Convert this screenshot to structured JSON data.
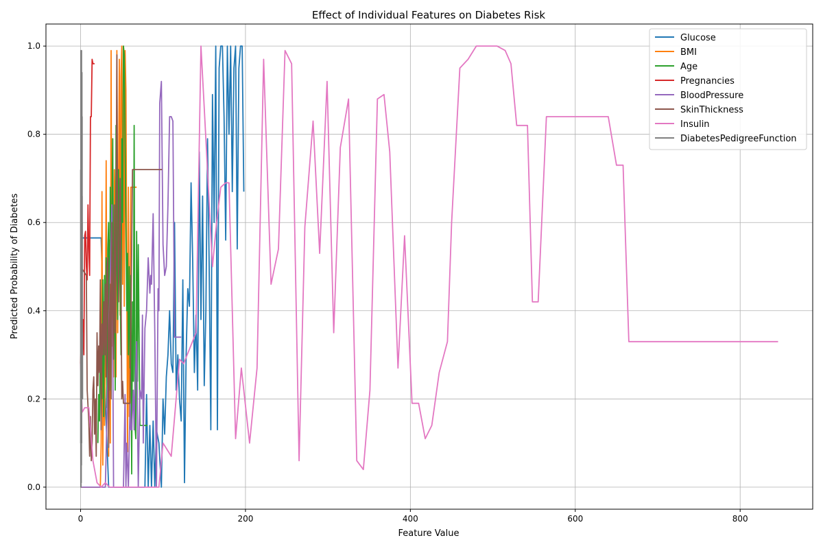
{
  "chart_data": {
    "type": "line",
    "title": "Effect of Individual Features on Diabetes Risk",
    "xlabel": "Feature Value",
    "ylabel": "Predicted Probability of Diabetes",
    "xlim": [
      -42,
      888
    ],
    "ylim": [
      -0.05,
      1.05
    ],
    "xticks": [
      0,
      200,
      400,
      600,
      800
    ],
    "yticks": [
      0.0,
      0.2,
      0.4,
      0.6,
      0.8,
      1.0
    ],
    "xtick_labels": [
      "0",
      "200",
      "400",
      "600",
      "800"
    ],
    "ytick_labels": [
      "0.0",
      "0.2",
      "0.4",
      "0.6",
      "0.8",
      "1.0"
    ],
    "grid": true,
    "legend_position": "top-right",
    "series": [
      {
        "name": "Glucose",
        "color": "#1f77b4",
        "x": [
          0,
          5,
          10,
          20,
          25,
          30,
          32,
          34,
          36,
          38,
          40,
          44,
          48,
          52,
          56,
          60,
          64,
          68,
          72,
          76,
          78,
          80,
          82,
          84,
          86,
          88,
          90,
          92,
          95,
          98,
          100,
          102,
          104,
          106,
          108,
          110,
          112,
          114,
          116,
          118,
          120,
          122,
          124,
          126,
          128,
          130,
          132,
          134,
          136,
          138,
          140,
          142,
          144,
          146,
          148,
          150,
          152,
          154,
          156,
          158,
          160,
          162,
          164,
          166,
          168,
          170,
          172,
          174,
          176,
          178,
          180,
          182,
          184,
          186,
          188,
          190,
          192,
          194,
          196,
          198
        ],
        "y": [
          0.565,
          0.565,
          0.565,
          0.565,
          0.565,
          0.2,
          0.1,
          0.0,
          0.0,
          0.0,
          0.0,
          0.0,
          0.0,
          0.0,
          0.0,
          0.0,
          0.0,
          0.0,
          0.0,
          0.0,
          0.0,
          0.21,
          0.0,
          0.14,
          0.0,
          0.15,
          0.0,
          0.13,
          0.1,
          0.0,
          0.2,
          0.12,
          0.25,
          0.3,
          0.4,
          0.28,
          0.26,
          0.6,
          0.22,
          0.3,
          0.2,
          0.15,
          0.47,
          0.01,
          0.3,
          0.45,
          0.41,
          0.69,
          0.51,
          0.26,
          0.39,
          0.22,
          0.76,
          0.38,
          0.66,
          0.23,
          0.4,
          0.79,
          0.5,
          0.13,
          0.89,
          0.6,
          1.0,
          0.13,
          0.95,
          1.0,
          1.0,
          0.84,
          0.56,
          1.0,
          0.8,
          1.0,
          0.67,
          0.95,
          1.0,
          0.54,
          0.95,
          1.0,
          1.0,
          0.67
        ]
      },
      {
        "name": "BMI",
        "color": "#ff7f0e",
        "x": [
          0,
          10,
          14,
          18,
          20,
          22,
          24,
          25,
          26,
          27,
          28,
          29,
          30,
          31,
          32,
          33,
          34,
          35,
          36,
          37,
          38,
          39,
          40,
          41,
          42,
          43,
          44,
          45,
          46,
          47,
          48,
          49,
          50,
          51,
          52,
          53,
          54,
          55,
          56,
          57,
          58,
          59,
          60,
          61,
          62,
          63,
          64,
          65,
          66,
          67,
          68
        ],
        "y": [
          0.0,
          0.0,
          0.0,
          0.0,
          0.0,
          0.0,
          0.0,
          0.1,
          0.67,
          0.05,
          0.35,
          0.14,
          0.29,
          0.74,
          0.27,
          0.48,
          0.07,
          0.56,
          0.1,
          0.99,
          0.32,
          0.55,
          0.25,
          0.72,
          0.61,
          0.25,
          0.99,
          0.35,
          0.66,
          0.97,
          0.39,
          0.93,
          1.0,
          0.46,
          1.0,
          0.41,
          0.99,
          0.9,
          0.5,
          0.08,
          0.68,
          0.16,
          0.46,
          0.68,
          0.68,
          0.68,
          0.68,
          0.68,
          0.68,
          0.68,
          0.68
        ]
      },
      {
        "name": "Age",
        "color": "#2ca02c",
        "x": [
          21,
          22,
          23,
          24,
          25,
          26,
          27,
          28,
          29,
          30,
          31,
          32,
          33,
          34,
          35,
          36,
          37,
          38,
          39,
          40,
          41,
          42,
          43,
          44,
          45,
          46,
          47,
          48,
          49,
          50,
          51,
          52,
          53,
          54,
          55,
          56,
          57,
          58,
          59,
          60,
          61,
          62,
          63,
          64,
          65,
          66,
          67,
          68,
          69,
          70,
          72,
          74,
          76,
          78,
          81
        ],
        "y": [
          0.1,
          0.21,
          0.15,
          0.35,
          0.3,
          0.2,
          0.47,
          0.16,
          0.48,
          0.3,
          0.52,
          0.18,
          0.54,
          0.6,
          0.22,
          0.68,
          0.5,
          0.64,
          0.79,
          0.32,
          0.54,
          0.22,
          0.82,
          0.5,
          0.38,
          0.72,
          0.6,
          0.45,
          0.3,
          0.79,
          0.6,
          1.0,
          0.98,
          0.78,
          0.6,
          0.4,
          0.53,
          0.3,
          0.5,
          0.27,
          0.48,
          0.03,
          0.42,
          0.24,
          0.82,
          0.14,
          0.11,
          0.58,
          0.24,
          0.55,
          0.14,
          0.14,
          0.14,
          0.14,
          0.14
        ]
      },
      {
        "name": "Pregnancies",
        "color": "#d62728",
        "x": [
          0,
          1,
          2,
          3,
          4,
          5,
          6,
          7,
          8,
          9,
          10,
          11,
          12,
          13,
          14,
          15,
          17
        ],
        "y": [
          0.28,
          0.35,
          0.28,
          0.38,
          0.3,
          0.57,
          0.58,
          0.5,
          0.47,
          0.64,
          0.54,
          0.48,
          0.84,
          0.84,
          0.97,
          0.96,
          0.96
        ]
      },
      {
        "name": "BloodPressure",
        "color": "#9467bd",
        "x": [
          0,
          24,
          30,
          38,
          40,
          44,
          46,
          48,
          50,
          52,
          54,
          55,
          56,
          58,
          60,
          61,
          62,
          64,
          65,
          66,
          68,
          70,
          72,
          74,
          75,
          76,
          78,
          80,
          82,
          84,
          85,
          86,
          88,
          90,
          92,
          94,
          95,
          96,
          98,
          100,
          102,
          104,
          106,
          108,
          110,
          112,
          114,
          116,
          118,
          120,
          122
        ],
        "y": [
          0.0,
          0.0,
          0.0,
          0.64,
          0.0,
          0.0,
          0.0,
          0.0,
          0.0,
          0.0,
          0.21,
          0.0,
          0.1,
          0.0,
          0.19,
          0.13,
          0.13,
          0.22,
          0.13,
          0.22,
          0.33,
          0.0,
          0.22,
          0.2,
          0.39,
          0.1,
          0.36,
          0.4,
          0.52,
          0.44,
          0.48,
          0.46,
          0.62,
          0.35,
          0.0,
          0.45,
          0.4,
          0.87,
          0.92,
          0.55,
          0.48,
          0.5,
          0.64,
          0.84,
          0.84,
          0.83,
          0.34,
          0.34,
          0.34,
          0.34,
          0.34
        ]
      },
      {
        "name": "SkinThickness",
        "color": "#8c564b",
        "x": [
          0,
          7,
          8,
          10,
          11,
          12,
          13,
          14,
          15,
          16,
          17,
          18,
          19,
          20,
          21,
          22,
          23,
          24,
          25,
          26,
          27,
          28,
          29,
          30,
          31,
          32,
          33,
          34,
          35,
          36,
          37,
          38,
          39,
          40,
          41,
          42,
          43,
          44,
          45,
          46,
          47,
          48,
          49,
          50,
          51,
          52,
          54,
          56,
          60,
          63,
          99
        ],
        "y": [
          0.5,
          0.48,
          0.22,
          0.15,
          0.07,
          0.16,
          0.06,
          0.1,
          0.22,
          0.25,
          0.12,
          0.2,
          0.07,
          0.35,
          0.23,
          0.32,
          0.26,
          0.47,
          0.13,
          0.37,
          0.3,
          0.42,
          0.3,
          0.46,
          0.25,
          0.5,
          0.52,
          0.09,
          0.37,
          0.46,
          0.2,
          0.6,
          0.4,
          0.29,
          0.64,
          0.35,
          0.55,
          0.98,
          0.59,
          0.42,
          0.6,
          0.7,
          0.46,
          0.2,
          0.24,
          0.19,
          0.19,
          0.19,
          0.19,
          0.72,
          0.72
        ]
      },
      {
        "name": "Insulin",
        "color": "#e377c2",
        "x": [
          0,
          1,
          2,
          5,
          10,
          15,
          20,
          25,
          30,
          35,
          40,
          45,
          50,
          55,
          60,
          65,
          70,
          75,
          80,
          85,
          90,
          95,
          100,
          110,
          120,
          125,
          140,
          146,
          150,
          160,
          165,
          170,
          176,
          180,
          188,
          195,
          205,
          214,
          222,
          231,
          240,
          248,
          256,
          265,
          272,
          282,
          290,
          299,
          307,
          315,
          325,
          335,
          343,
          351,
          360,
          368,
          375,
          385,
          393,
          402,
          410,
          418,
          426,
          435,
          445,
          450,
          460,
          470,
          480,
          495,
          505,
          515,
          522,
          529,
          535,
          542,
          548,
          555,
          565,
          620,
          640,
          650,
          658,
          665,
          700,
          846
        ],
        "y": [
          0.28,
          0.22,
          0.17,
          0.18,
          0.18,
          0.06,
          0.01,
          0.0,
          0.01,
          0.0,
          0.0,
          0.0,
          0.0,
          0.0,
          0.0,
          0.0,
          0.0,
          0.0,
          0.0,
          0.0,
          0.0,
          0.0,
          0.1,
          0.07,
          0.29,
          0.28,
          0.35,
          1.0,
          0.86,
          0.5,
          0.6,
          0.68,
          0.69,
          0.69,
          0.11,
          0.27,
          0.1,
          0.27,
          0.97,
          0.46,
          0.54,
          0.99,
          0.96,
          0.06,
          0.59,
          0.83,
          0.53,
          0.92,
          0.35,
          0.77,
          0.88,
          0.06,
          0.04,
          0.22,
          0.88,
          0.89,
          0.76,
          0.27,
          0.57,
          0.19,
          0.19,
          0.11,
          0.14,
          0.26,
          0.33,
          0.6,
          0.95,
          0.97,
          1.0,
          1.0,
          1.0,
          0.99,
          0.96,
          0.82,
          0.82,
          0.82,
          0.42,
          0.42,
          0.84,
          0.84,
          0.84,
          0.73,
          0.73,
          0.33,
          0.33,
          0.33
        ]
      },
      {
        "name": "DiabetesPedigreeFunction",
        "color": "#7f7f7f",
        "x": [
          0.08,
          0.12,
          0.16,
          0.2,
          0.25,
          0.3,
          0.35,
          0.4,
          0.45,
          0.5,
          0.55,
          0.6,
          0.65,
          0.7,
          0.75,
          0.8,
          0.85,
          0.9,
          0.95,
          1.0,
          1.05,
          1.1,
          1.15,
          1.2,
          1.25,
          1.3,
          1.35,
          1.4,
          1.45,
          1.5,
          1.55,
          1.6,
          1.65,
          1.7,
          1.75,
          1.8,
          1.85,
          1.9,
          1.95,
          2.0,
          2.05,
          2.1,
          2.2,
          2.3,
          2.42
        ],
        "y": [
          0.72,
          0.1,
          0.7,
          0.3,
          0.0,
          0.99,
          0.6,
          0.2,
          0.95,
          0.0,
          0.56,
          0.34,
          0.97,
          0.5,
          0.2,
          0.45,
          0.01,
          0.63,
          0.3,
          0.76,
          0.35,
          0.05,
          0.99,
          0.45,
          0.9,
          0.1,
          0.66,
          0.3,
          0.85,
          0.52,
          0.2,
          0.7,
          0.94,
          0.4,
          0.76,
          0.27,
          0.6,
          0.84,
          0.5,
          0.66,
          0.2,
          0.6,
          0.2,
          0.35,
          0.2
        ]
      }
    ]
  }
}
